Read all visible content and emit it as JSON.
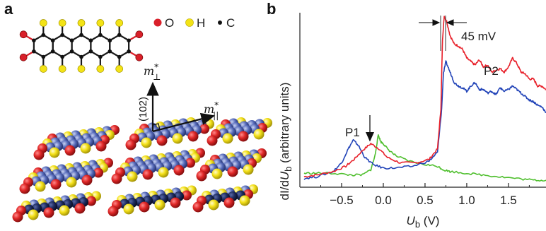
{
  "panels": [
    {
      "id": "a",
      "label": "a"
    },
    {
      "id": "b",
      "label": "b"
    }
  ],
  "molecule": {
    "legend": [
      {
        "symbol": "O",
        "color": "#d9202a"
      },
      {
        "symbol": "H",
        "color": "#f3e316"
      },
      {
        "symbol": "C",
        "color": "#111111"
      }
    ],
    "vectors": {
      "perp": {
        "label_main": "m",
        "star": "*",
        "sub": "⊥"
      },
      "par": {
        "label_main": "m",
        "star": "*",
        "sub": "||"
      },
      "plane": "(102)"
    }
  },
  "colors": {
    "oxygen": "#d9202a",
    "hydrogen": "#f3e316",
    "carbon": "#111111",
    "crystal_blue": "#4a5fb0",
    "crystal_dark": "#15204a"
  },
  "chart_data": {
    "type": "line",
    "ylabel_prefix": "dI/d",
    "ylabel_var": "U",
    "ylabel_sub": "b",
    "ylabel_suffix": " (arbitrary units)",
    "xlabel_var": "U",
    "xlabel_sub": "b",
    "xlabel_unit": " (V)",
    "xlim": [
      -1.0,
      1.95
    ],
    "ylim": [
      0,
      1.0
    ],
    "xticks": [
      -0.5,
      0.0,
      0.5,
      1.0,
      1.5
    ],
    "xtick_labels": [
      "−0.5",
      "0.0",
      "0.5",
      "1.0",
      "1.5"
    ],
    "annotations": {
      "p1": "P1",
      "p2": "P2",
      "gap": "45 mV"
    },
    "series": [
      {
        "color": "#e8202a",
        "x": [
          -0.95,
          -0.8,
          -0.6,
          -0.45,
          -0.35,
          -0.25,
          -0.15,
          -0.05,
          0.05,
          0.2,
          0.4,
          0.55,
          0.65,
          0.69,
          0.71,
          0.73,
          0.76,
          0.8,
          0.85,
          0.9,
          0.95,
          1.0,
          1.05,
          1.1,
          1.15,
          1.2,
          1.25,
          1.3,
          1.35,
          1.4,
          1.45,
          1.5,
          1.55,
          1.6,
          1.65,
          1.7,
          1.75,
          1.8,
          1.85,
          1.9,
          1.95
        ],
        "y": [
          0.06,
          0.07,
          0.09,
          0.12,
          0.16,
          0.21,
          0.25,
          0.22,
          0.17,
          0.14,
          0.14,
          0.16,
          0.22,
          0.45,
          0.85,
          0.98,
          0.95,
          0.87,
          0.82,
          0.81,
          0.79,
          0.74,
          0.72,
          0.7,
          0.73,
          0.69,
          0.7,
          0.66,
          0.67,
          0.68,
          0.66,
          0.69,
          0.74,
          0.71,
          0.66,
          0.65,
          0.62,
          0.62,
          0.58,
          0.58,
          0.56
        ]
      },
      {
        "color": "#2244b8",
        "x": [
          -0.95,
          -0.8,
          -0.6,
          -0.5,
          -0.42,
          -0.36,
          -0.3,
          -0.22,
          -0.12,
          0.0,
          0.15,
          0.35,
          0.55,
          0.65,
          0.7,
          0.72,
          0.75,
          0.8,
          0.85,
          0.9,
          0.95,
          1.0,
          1.05,
          1.1,
          1.15,
          1.2,
          1.25,
          1.3,
          1.35,
          1.4,
          1.45,
          1.5,
          1.55,
          1.6,
          1.65,
          1.7,
          1.75,
          1.8,
          1.85,
          1.9,
          1.95
        ],
        "y": [
          0.05,
          0.06,
          0.09,
          0.14,
          0.22,
          0.27,
          0.24,
          0.17,
          0.13,
          0.11,
          0.11,
          0.12,
          0.15,
          0.2,
          0.45,
          0.65,
          0.72,
          0.66,
          0.6,
          0.58,
          0.57,
          0.55,
          0.58,
          0.6,
          0.56,
          0.56,
          0.54,
          0.55,
          0.53,
          0.57,
          0.55,
          0.56,
          0.58,
          0.56,
          0.54,
          0.52,
          0.5,
          0.49,
          0.47,
          0.46,
          0.43
        ]
      },
      {
        "color": "#4fbf2e",
        "x": [
          -0.95,
          -0.8,
          -0.6,
          -0.4,
          -0.25,
          -0.15,
          -0.1,
          -0.06,
          -0.03,
          0.0,
          0.05,
          0.15,
          0.3,
          0.5,
          0.65,
          0.72,
          0.8,
          1.0,
          1.2,
          1.4,
          1.6,
          1.8,
          1.95
        ],
        "y": [
          0.08,
          0.08,
          0.08,
          0.07,
          0.07,
          0.1,
          0.18,
          0.3,
          0.26,
          0.25,
          0.22,
          0.18,
          0.15,
          0.13,
          0.12,
          0.1,
          0.09,
          0.08,
          0.07,
          0.06,
          0.05,
          0.04,
          0.04
        ]
      }
    ]
  }
}
